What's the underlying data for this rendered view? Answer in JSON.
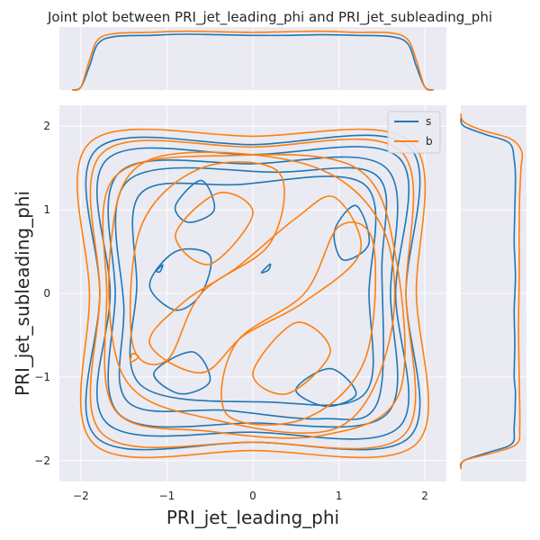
{
  "chart_data": {
    "type": "kde-joint",
    "title": "Joint plot between PRI_jet_leading_phi and PRI_jet_subleading_phi",
    "xlabel": "PRI_jet_leading_phi",
    "ylabel": "PRI_jet_subleading_phi",
    "xlim": [
      -2.25,
      2.25
    ],
    "ylim": [
      -2.25,
      2.25
    ],
    "x_ticks": [
      -2,
      -1,
      0,
      1,
      2
    ],
    "y_ticks": [
      -2,
      -1,
      0,
      1,
      2
    ],
    "x_tick_labels": [
      "−2",
      "−1",
      "0",
      "1",
      "2"
    ],
    "y_tick_labels": [
      "−2",
      "−1",
      "0",
      "1",
      "2"
    ],
    "grid": true,
    "legend_position": "top-right",
    "series": [
      {
        "name": "s",
        "color": "#1f77b4",
        "marginal_x": [
          [
            -2.1,
            0.0
          ],
          [
            -2.0,
            0.05
          ],
          [
            -1.9,
            0.4
          ],
          [
            -1.8,
            0.78
          ],
          [
            -1.6,
            0.9
          ],
          [
            -1.2,
            0.92
          ],
          [
            -0.8,
            0.94
          ],
          [
            -0.4,
            0.93
          ],
          [
            0.0,
            0.92
          ],
          [
            0.4,
            0.92
          ],
          [
            0.8,
            0.93
          ],
          [
            1.2,
            0.92
          ],
          [
            1.6,
            0.9
          ],
          [
            1.8,
            0.78
          ],
          [
            1.9,
            0.4
          ],
          [
            2.0,
            0.05
          ],
          [
            2.1,
            0.0
          ]
        ],
        "marginal_y": [
          [
            -2.1,
            0.0
          ],
          [
            -2.0,
            0.05
          ],
          [
            -1.9,
            0.45
          ],
          [
            -1.8,
            0.82
          ],
          [
            -1.6,
            0.86
          ],
          [
            -1.2,
            0.88
          ],
          [
            -1.0,
            0.86
          ],
          [
            -0.6,
            0.87
          ],
          [
            -0.2,
            0.86
          ],
          [
            0.2,
            0.88
          ],
          [
            0.6,
            0.86
          ],
          [
            1.0,
            0.87
          ],
          [
            1.4,
            0.88
          ],
          [
            1.6,
            0.86
          ],
          [
            1.8,
            0.78
          ],
          [
            1.9,
            0.4
          ],
          [
            2.0,
            0.05
          ],
          [
            2.1,
            0.0
          ]
        ],
        "contours": [
          [
            [
              -1.82,
              -1.72
            ],
            [
              0.0,
              -1.78
            ],
            [
              1.82,
              -1.72
            ],
            [
              1.78,
              0.0
            ],
            [
              1.82,
              1.75
            ],
            [
              0.0,
              1.78
            ],
            [
              -1.82,
              1.72
            ],
            [
              -1.78,
              0.0
            ]
          ],
          [
            [
              -1.7,
              -1.55
            ],
            [
              0.0,
              -1.66
            ],
            [
              1.7,
              -1.6
            ],
            [
              1.66,
              0.0
            ],
            [
              1.7,
              1.62
            ],
            [
              0.0,
              1.66
            ],
            [
              -1.7,
              1.6
            ],
            [
              -1.66,
              0.0
            ]
          ],
          [
            [
              -1.55,
              -1.45
            ],
            [
              0.0,
              -1.55
            ],
            [
              1.55,
              -1.45
            ],
            [
              1.6,
              0.0
            ],
            [
              1.55,
              1.5
            ],
            [
              0.0,
              1.55
            ],
            [
              -1.55,
              1.45
            ],
            [
              -1.6,
              0.0
            ]
          ],
          [
            [
              -1.45,
              -1.3
            ],
            [
              -0.3,
              -1.4
            ],
            [
              0.8,
              -1.5
            ],
            [
              1.45,
              -1.3
            ],
            [
              1.5,
              0.3
            ],
            [
              1.45,
              1.4
            ],
            [
              0.3,
              1.45
            ],
            [
              -1.45,
              1.35
            ],
            [
              -1.5,
              -0.2
            ]
          ],
          [
            [
              -1.3,
              -1.1
            ],
            [
              0.2,
              -1.3
            ],
            [
              1.3,
              -1.2
            ],
            [
              1.35,
              0.0
            ],
            [
              1.3,
              1.3
            ],
            [
              -0.2,
              1.3
            ],
            [
              -1.3,
              1.2
            ],
            [
              -1.35,
              0.1
            ]
          ],
          [
            [
              -1.2,
              0.1
            ],
            [
              -0.9,
              0.5
            ],
            [
              -0.5,
              0.45
            ],
            [
              -0.6,
              0.0
            ],
            [
              -0.9,
              -0.2
            ]
          ],
          [
            [
              -1.15,
              -0.95
            ],
            [
              -0.7,
              -0.7
            ],
            [
              -0.5,
              -1.05
            ],
            [
              -0.85,
              -1.2
            ]
          ],
          [
            [
              0.95,
              0.75
            ],
            [
              1.2,
              1.05
            ],
            [
              1.35,
              0.6
            ],
            [
              1.05,
              0.4
            ]
          ],
          [
            [
              0.5,
              -1.15
            ],
            [
              0.9,
              -0.9
            ],
            [
              1.2,
              -1.2
            ],
            [
              0.85,
              -1.35
            ]
          ],
          [
            [
              -0.9,
              1.05
            ],
            [
              -0.6,
              1.35
            ],
            [
              -0.45,
              1.0
            ],
            [
              -0.75,
              0.85
            ]
          ],
          [
            [
              0.1,
              0.25
            ],
            [
              0.2,
              0.35
            ],
            [
              0.18,
              0.28
            ]
          ],
          [
            [
              -1.12,
              0.27
            ],
            [
              -1.05,
              0.34
            ],
            [
              -1.08,
              0.26
            ]
          ]
        ]
      },
      {
        "name": "b",
        "color": "#ff7f0e",
        "marginal_x": [
          [
            -2.1,
            0.0
          ],
          [
            -2.0,
            0.05
          ],
          [
            -1.9,
            0.5
          ],
          [
            -1.8,
            0.85
          ],
          [
            -1.6,
            0.95
          ],
          [
            -1.2,
            0.97
          ],
          [
            -0.8,
            0.99
          ],
          [
            -0.4,
            0.98
          ],
          [
            0.0,
            0.97
          ],
          [
            0.4,
            0.98
          ],
          [
            0.8,
            0.99
          ],
          [
            1.2,
            0.97
          ],
          [
            1.6,
            0.96
          ],
          [
            1.8,
            0.85
          ],
          [
            1.9,
            0.5
          ],
          [
            2.0,
            0.05
          ],
          [
            2.1,
            0.0
          ]
        ],
        "marginal_y": [
          [
            -2.1,
            0.0
          ],
          [
            -2.0,
            0.05
          ],
          [
            -1.9,
            0.55
          ],
          [
            -1.8,
            0.9
          ],
          [
            -1.6,
            0.95
          ],
          [
            -1.0,
            0.94
          ],
          [
            -0.4,
            0.93
          ],
          [
            0.2,
            0.94
          ],
          [
            0.8,
            0.94
          ],
          [
            1.2,
            0.95
          ],
          [
            1.5,
            0.97
          ],
          [
            1.7,
            0.98
          ],
          [
            1.85,
            0.8
          ],
          [
            1.95,
            0.35
          ],
          [
            2.05,
            0.05
          ],
          [
            2.15,
            0.0
          ]
        ],
        "contours": [
          [
            [
              -1.85,
              -1.8
            ],
            [
              0.0,
              -1.88
            ],
            [
              1.9,
              -1.8
            ],
            [
              1.9,
              0.0
            ],
            [
              1.85,
              1.8
            ],
            [
              0.0,
              1.88
            ],
            [
              -1.9,
              1.8
            ],
            [
              -1.9,
              0.0
            ]
          ],
          [
            [
              -1.75,
              -1.68
            ],
            [
              0.0,
              -1.78
            ],
            [
              1.75,
              -1.7
            ],
            [
              1.78,
              0.0
            ],
            [
              1.72,
              1.7
            ],
            [
              0.0,
              1.75
            ],
            [
              -1.75,
              1.68
            ],
            [
              -1.78,
              0.0
            ]
          ],
          [
            [
              -1.6,
              -1.4
            ],
            [
              -0.5,
              -1.65
            ],
            [
              0.8,
              -1.7
            ],
            [
              1.7,
              -1.2
            ],
            [
              1.65,
              0.5
            ],
            [
              1.2,
              1.5
            ],
            [
              -0.2,
              1.65
            ],
            [
              -1.6,
              1.4
            ],
            [
              -1.7,
              0.0
            ]
          ],
          [
            [
              -1.5,
              -1.0
            ],
            [
              -0.5,
              -1.5
            ],
            [
              1.0,
              -1.6
            ],
            [
              1.6,
              -0.5
            ],
            [
              1.5,
              0.8
            ],
            [
              0.6,
              1.55
            ],
            [
              -1.2,
              1.6
            ],
            [
              -1.65,
              0.6
            ]
          ],
          [
            [
              -1.4,
              -0.6
            ],
            [
              -1.3,
              0.8
            ],
            [
              -0.6,
              1.5
            ],
            [
              0.3,
              1.45
            ],
            [
              0.2,
              0.6
            ],
            [
              -0.6,
              0.0
            ],
            [
              -1.0,
              -0.8
            ]
          ],
          [
            [
              1.4,
              0.6
            ],
            [
              1.3,
              -0.8
            ],
            [
              0.6,
              -1.5
            ],
            [
              -0.3,
              -1.45
            ],
            [
              -0.2,
              -0.6
            ],
            [
              0.6,
              0.0
            ],
            [
              1.0,
              0.8
            ]
          ],
          [
            [
              -0.4,
              1.2
            ],
            [
              -0.9,
              0.7
            ],
            [
              -0.5,
              0.35
            ],
            [
              0.0,
              0.95
            ]
          ],
          [
            [
              0.4,
              -1.2
            ],
            [
              0.9,
              -0.7
            ],
            [
              0.5,
              -0.35
            ],
            [
              0.0,
              -0.95
            ]
          ],
          [
            [
              -0.2,
              0.3
            ],
            [
              0.5,
              0.9
            ],
            [
              0.95,
              1.15
            ],
            [
              1.25,
              0.5
            ],
            [
              0.6,
              -0.1
            ],
            [
              -0.1,
              -0.5
            ],
            [
              -0.6,
              -0.95
            ],
            [
              -1.2,
              -0.6
            ],
            [
              -0.8,
              -0.1
            ]
          ],
          [
            [
              -1.42,
              -0.82
            ],
            [
              -1.33,
              -0.76
            ],
            [
              -1.4,
              -0.72
            ]
          ]
        ]
      }
    ]
  }
}
